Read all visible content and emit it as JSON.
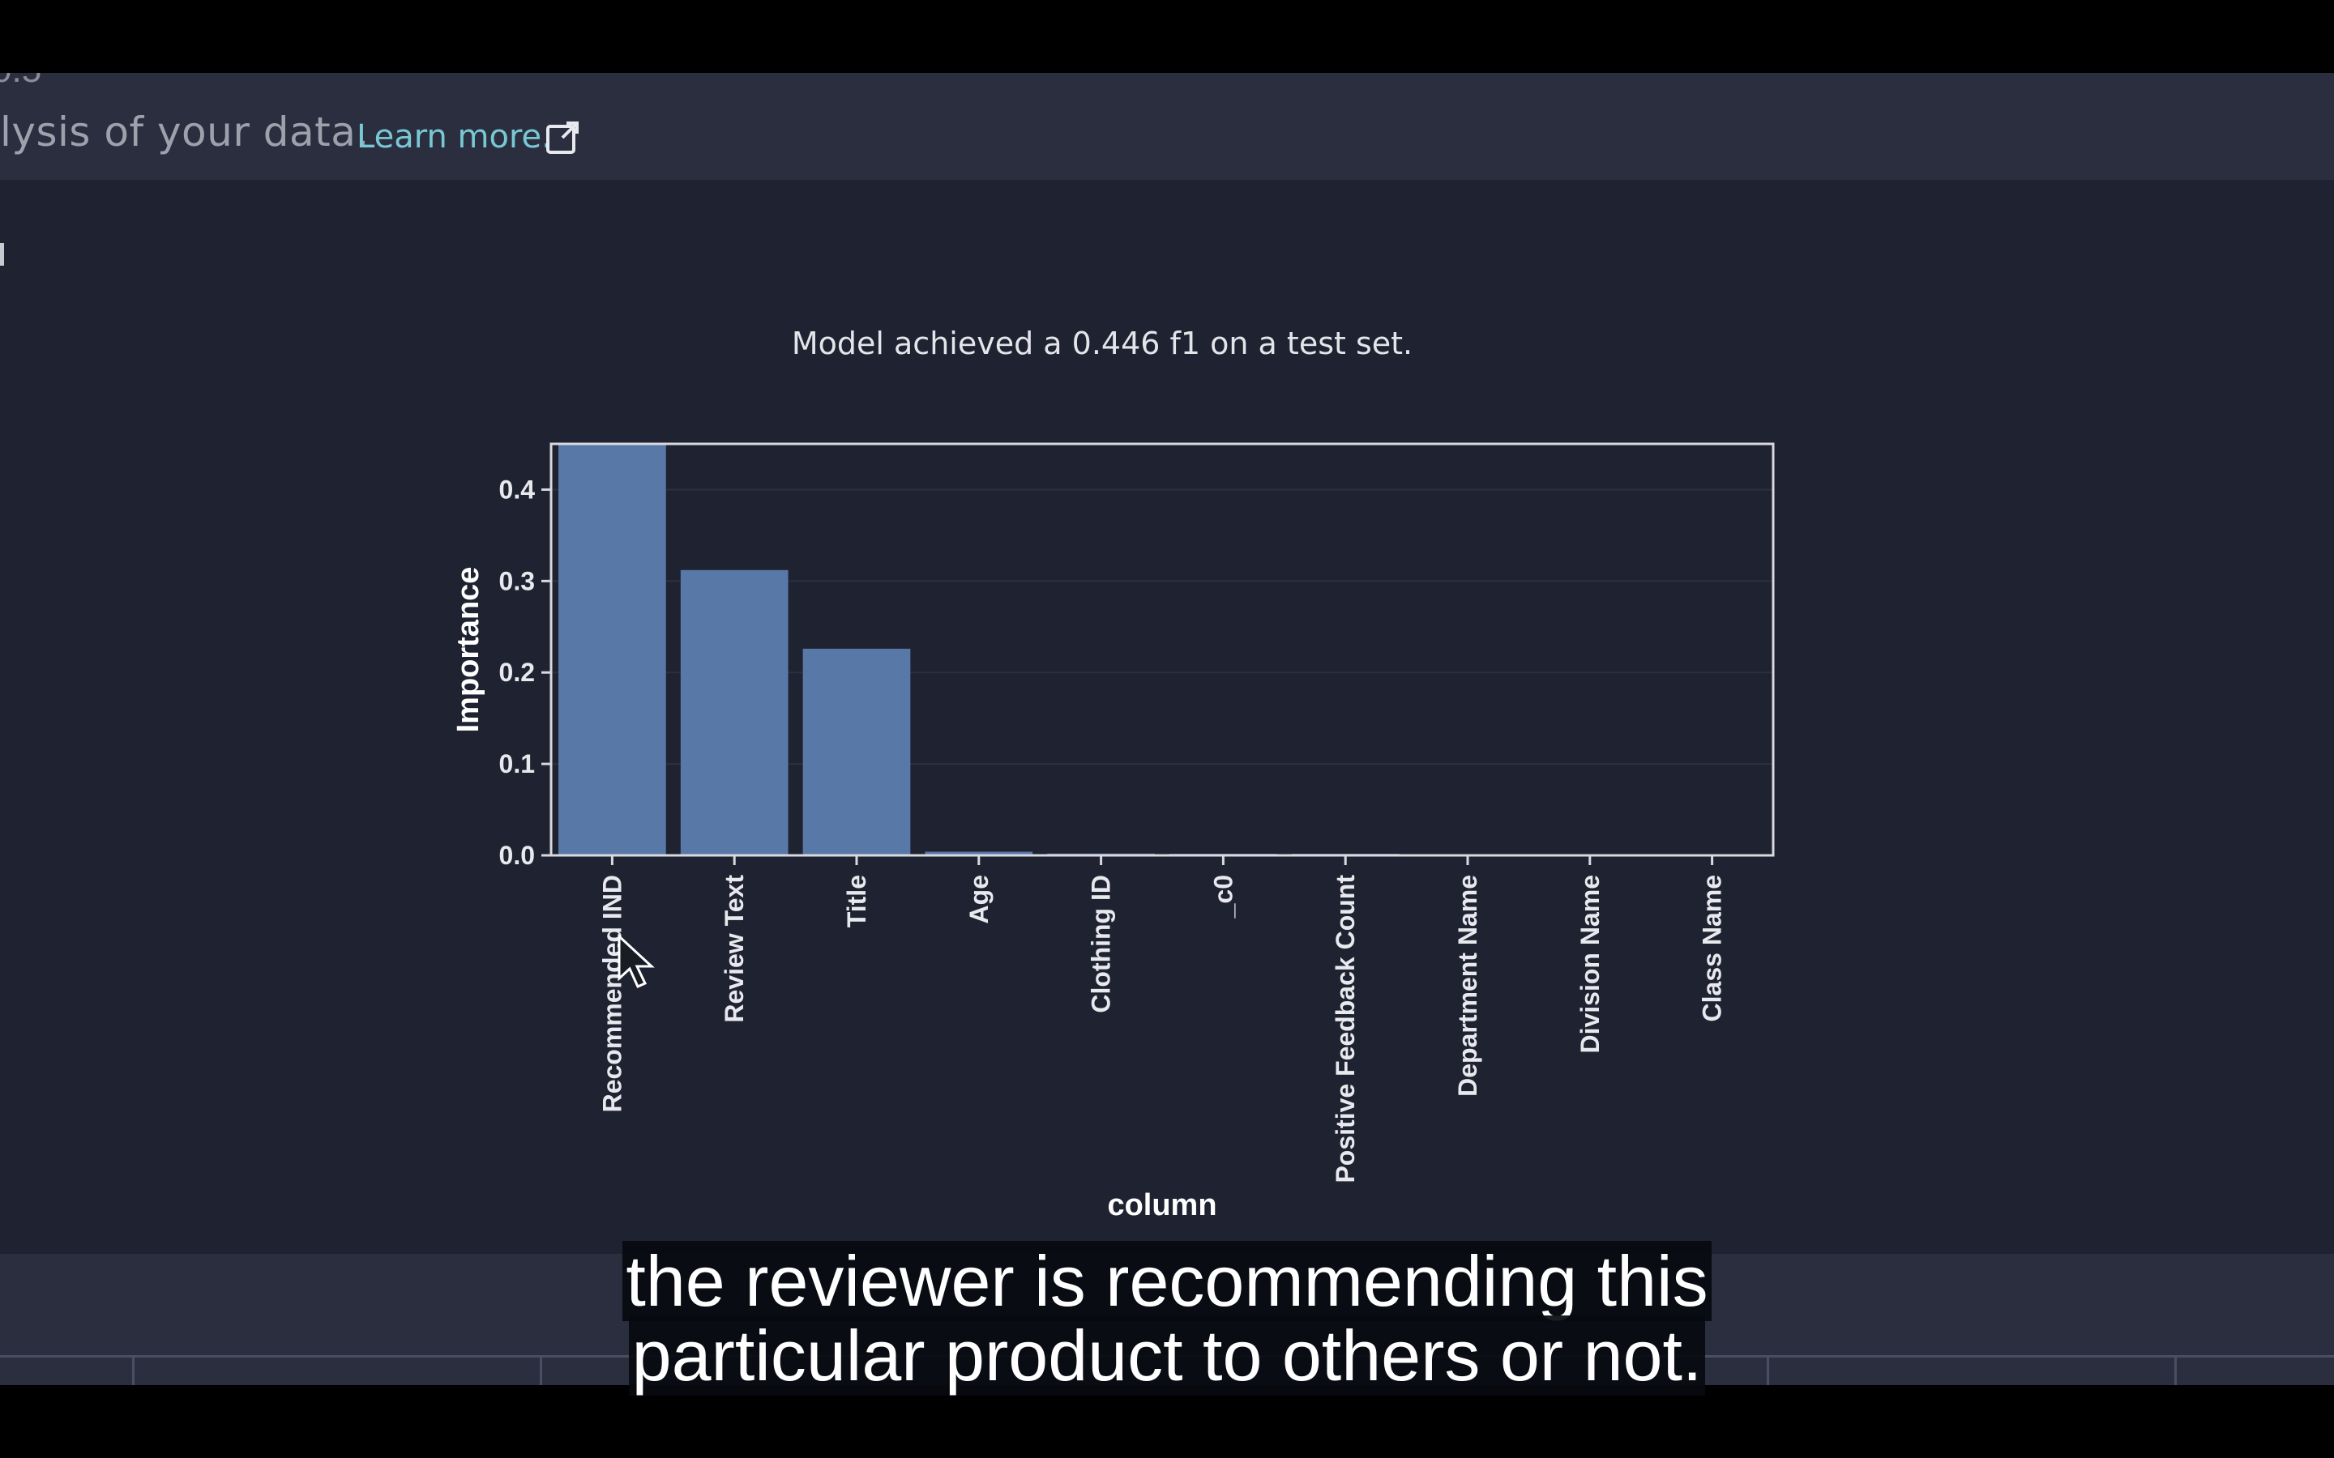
{
  "header": {
    "clipped_number": "0.5",
    "description": "lysis of your data.",
    "learn_more": "Learn more.",
    "external_icon": "external-link-icon"
  },
  "chart_data": {
    "type": "bar",
    "title": "Model achieved a 0.446 f1 on a test set.",
    "xlabel": "column",
    "ylabel": "Importance",
    "categories": [
      "Recommended IND",
      "Review Text",
      "Title",
      "Age",
      "Clothing ID",
      "_c0",
      "Positive Feedback Count",
      "Department Name",
      "Division Name",
      "Class Name"
    ],
    "values": [
      0.45,
      0.312,
      0.226,
      0.004,
      0.002,
      0.001,
      0.001,
      0.0,
      0.0,
      0.0
    ],
    "ylim": [
      0,
      0.45
    ],
    "yticks": [
      "0.0",
      "0.1",
      "0.2",
      "0.3",
      "0.4"
    ],
    "grid": true,
    "colors": {
      "bar": "#5878a8",
      "frame": "#d8d9de"
    }
  },
  "subtitles": {
    "line1": "the reviewer is recommending this",
    "line2": "particular product to others or not."
  },
  "cursor_icon": "mouse-pointer-icon"
}
